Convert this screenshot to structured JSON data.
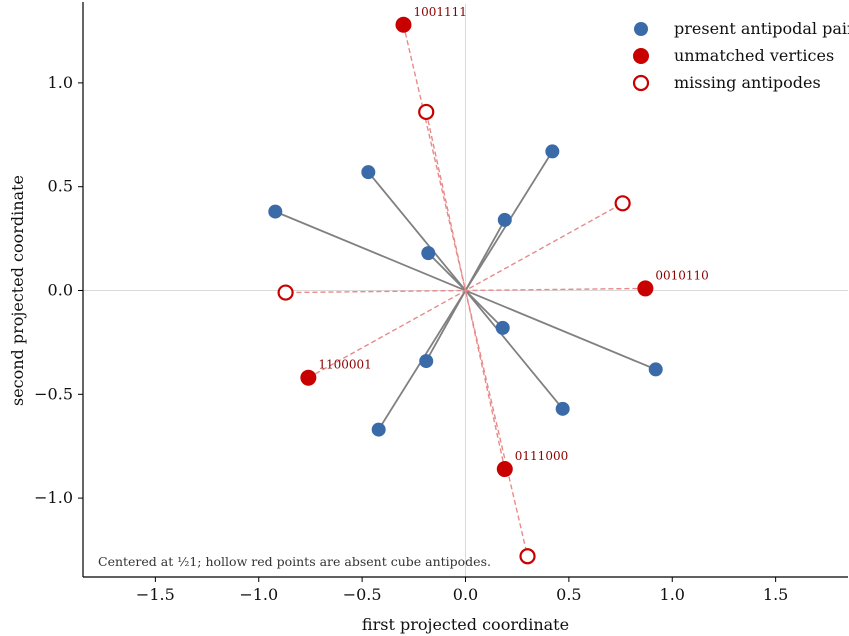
{
  "chart_data": {
    "type": "scatter",
    "xlabel": "first projected coordinate",
    "ylabel": "second projected coordinate",
    "xlim": [
      -1.85,
      1.85
    ],
    "ylim": [
      -1.38,
      1.38
    ],
    "xticks": [
      -1.5,
      -1.0,
      -0.5,
      0.0,
      0.5,
      1.0,
      1.5
    ],
    "yticks": [
      -1.0,
      -0.5,
      0.0,
      0.5,
      1.0
    ],
    "xtick_labels": [
      "−1.5",
      "−1.0",
      "−0.5",
      "0.0",
      "0.5",
      "1.0",
      "1.5"
    ],
    "ytick_labels": [
      "−1.0",
      "−0.5",
      "0.0",
      "0.5",
      "1.0"
    ],
    "grid": false,
    "zero_lines": true,
    "legend_position": "top-right",
    "colors": {
      "present": "#3a6ba8",
      "unmatched": "#c80000",
      "missing": "#c80000",
      "pair_line": "#808080",
      "dashed_line": "#e88a8a",
      "zero_line": "#d9d9d9"
    },
    "series": [
      {
        "name": "present antipodal pairs",
        "marker": "filled",
        "points": [
          {
            "x": -0.92,
            "y": 0.38
          },
          {
            "x": 0.92,
            "y": -0.38
          },
          {
            "x": -0.47,
            "y": 0.57
          },
          {
            "x": 0.47,
            "y": -0.57
          },
          {
            "x": 0.42,
            "y": 0.67
          },
          {
            "x": -0.42,
            "y": -0.67
          },
          {
            "x": 0.19,
            "y": 0.34
          },
          {
            "x": -0.19,
            "y": -0.34
          },
          {
            "x": -0.18,
            "y": 0.18
          },
          {
            "x": 0.18,
            "y": -0.18
          }
        ],
        "pairs": [
          [
            0,
            1
          ],
          [
            2,
            3
          ],
          [
            4,
            5
          ],
          [
            6,
            7
          ],
          [
            8,
            9
          ]
        ]
      },
      {
        "name": "unmatched vertices",
        "marker": "filled",
        "points": [
          {
            "x": -0.3,
            "y": 1.28,
            "label": "1001111"
          },
          {
            "x": 0.87,
            "y": 0.01,
            "label": "0010110"
          },
          {
            "x": -0.76,
            "y": -0.42,
            "label": "1100001"
          },
          {
            "x": 0.19,
            "y": -0.86,
            "label": "0111000"
          }
        ]
      },
      {
        "name": "missing antipodes",
        "marker": "hollow",
        "points": [
          {
            "x": -0.19,
            "y": 0.86
          },
          {
            "x": 0.76,
            "y": 0.42
          },
          {
            "x": -0.87,
            "y": -0.01
          },
          {
            "x": 0.3,
            "y": -1.28
          }
        ]
      }
    ],
    "dashed_pairs": [
      [
        0,
        3
      ],
      [
        1,
        2
      ],
      [
        2,
        1
      ],
      [
        3,
        0
      ]
    ],
    "annotation": "Centered at ½1; hollow red points are absent cube antipodes."
  }
}
